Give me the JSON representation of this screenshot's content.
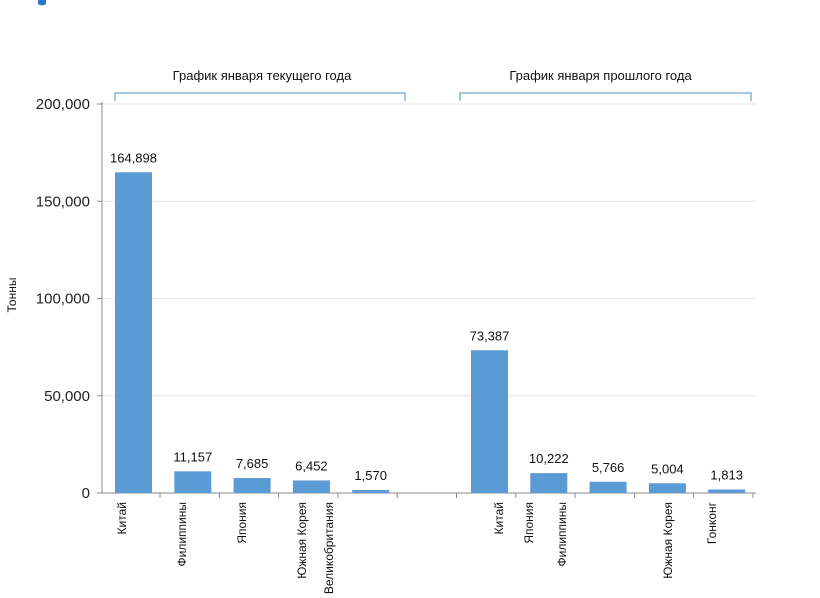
{
  "chart_data": {
    "type": "bar",
    "ylabel": "Тонны",
    "ylim": [
      0,
      200000
    ],
    "yticks": [
      0,
      50000,
      100000,
      150000,
      200000
    ],
    "ytick_labels": [
      "0",
      "50,000",
      "100,000",
      "150,000",
      "200,000"
    ],
    "grid": true,
    "bar_color": "#5b9bd5",
    "bracket_color": "#6fa8d6",
    "groups": [
      {
        "label": "График января текущего года",
        "bars": [
          {
            "category": "Китай",
            "value": 164898,
            "value_label": "164,898"
          },
          {
            "category": "Филиппины",
            "value": 11157,
            "value_label": "11,157"
          },
          {
            "category": "Япония",
            "value": 7685,
            "value_label": "7,685"
          },
          {
            "category": "Южная Корея",
            "value": 6452,
            "value_label": "6,452"
          },
          {
            "category": "Великобритания",
            "value": 1570,
            "value_label": "1,570"
          }
        ]
      },
      {
        "label": "График января прошлого года",
        "bars": [
          {
            "category": "Китай",
            "value": 73387,
            "value_label": "73,387"
          },
          {
            "category": "Япония",
            "value": 10222,
            "value_label": "10,222"
          },
          {
            "category": "Филиппины",
            "value": 5766,
            "value_label": "5,766"
          },
          {
            "category": "Южная Корея",
            "value": 5004,
            "value_label": "5,004"
          },
          {
            "category": "Гонконг",
            "value": 1813,
            "value_label": "1,813"
          }
        ]
      }
    ]
  }
}
